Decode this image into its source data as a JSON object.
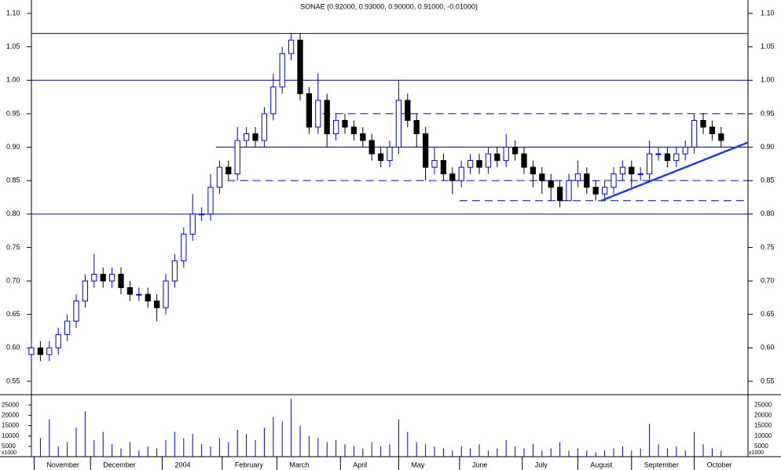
{
  "chart_data": {
    "type": "candlestick",
    "title": "SONAE (0.92000, 0.93000, 0.90000, 0.91000, -0.01000)",
    "x": [
      0,
      1,
      2,
      3,
      4,
      5,
      6,
      7,
      8,
      9,
      10,
      11,
      12,
      13,
      14,
      15,
      16,
      17,
      18,
      19,
      20,
      21,
      22,
      23,
      24,
      25,
      26,
      27,
      28,
      29,
      30,
      31,
      32,
      33,
      34,
      35,
      36,
      37,
      38,
      39,
      40,
      41,
      42,
      43,
      44,
      45,
      46,
      47,
      48,
      49,
      50,
      51,
      52,
      53,
      54,
      55,
      56,
      57,
      58,
      59,
      60,
      61,
      62,
      63,
      64,
      65,
      66,
      67,
      68,
      69,
      70,
      71,
      72,
      73,
      74,
      75,
      76,
      77
    ],
    "open": [
      0.59,
      0.6,
      0.59,
      0.6,
      0.62,
      0.64,
      0.67,
      0.7,
      0.71,
      0.7,
      0.71,
      0.69,
      0.68,
      0.68,
      0.67,
      0.66,
      0.7,
      0.73,
      0.77,
      0.8,
      0.8,
      0.84,
      0.87,
      0.86,
      0.91,
      0.92,
      0.91,
      0.95,
      0.99,
      1.04,
      1.06,
      0.98,
      0.93,
      0.97,
      0.92,
      0.94,
      0.93,
      0.92,
      0.91,
      0.89,
      0.88,
      0.9,
      0.97,
      0.94,
      0.92,
      0.87,
      0.88,
      0.86,
      0.85,
      0.87,
      0.88,
      0.87,
      0.89,
      0.88,
      0.9,
      0.89,
      0.87,
      0.86,
      0.85,
      0.84,
      0.82,
      0.85,
      0.86,
      0.84,
      0.83,
      0.84,
      0.86,
      0.87,
      0.86,
      0.86,
      0.89,
      0.89,
      0.88,
      0.89,
      0.9,
      0.94,
      0.93,
      0.92
    ],
    "high": [
      0.61,
      0.61,
      0.61,
      0.63,
      0.65,
      0.68,
      0.71,
      0.74,
      0.72,
      0.72,
      0.72,
      0.7,
      0.69,
      0.69,
      0.68,
      0.71,
      0.74,
      0.78,
      0.83,
      0.81,
      0.86,
      0.88,
      0.88,
      0.93,
      0.93,
      0.93,
      0.96,
      1.01,
      1.05,
      1.07,
      1.07,
      0.99,
      1.01,
      0.98,
      0.95,
      0.95,
      0.94,
      0.93,
      0.92,
      0.9,
      0.91,
      1.0,
      0.98,
      0.95,
      0.93,
      0.9,
      0.89,
      0.87,
      0.88,
      0.89,
      0.89,
      0.9,
      0.9,
      0.92,
      0.91,
      0.9,
      0.88,
      0.87,
      0.86,
      0.85,
      0.86,
      0.88,
      0.87,
      0.85,
      0.85,
      0.87,
      0.88,
      0.88,
      0.87,
      0.91,
      0.9,
      0.9,
      0.9,
      0.91,
      0.95,
      0.95,
      0.94,
      0.93
    ],
    "low": [
      0.58,
      0.58,
      0.58,
      0.59,
      0.61,
      0.63,
      0.66,
      0.69,
      0.69,
      0.69,
      0.68,
      0.67,
      0.67,
      0.66,
      0.64,
      0.65,
      0.69,
      0.72,
      0.76,
      0.79,
      0.79,
      0.83,
      0.85,
      0.85,
      0.9,
      0.9,
      0.9,
      0.94,
      0.98,
      1.03,
      0.97,
      0.92,
      0.92,
      0.9,
      0.91,
      0.92,
      0.91,
      0.9,
      0.88,
      0.87,
      0.87,
      0.89,
      0.93,
      0.9,
      0.85,
      0.86,
      0.85,
      0.83,
      0.84,
      0.86,
      0.86,
      0.86,
      0.87,
      0.87,
      0.88,
      0.86,
      0.84,
      0.83,
      0.82,
      0.81,
      0.82,
      0.84,
      0.83,
      0.82,
      0.82,
      0.83,
      0.85,
      0.84,
      0.85,
      0.85,
      0.88,
      0.87,
      0.87,
      0.88,
      0.89,
      0.92,
      0.91,
      0.9
    ],
    "close": [
      0.6,
      0.59,
      0.6,
      0.62,
      0.64,
      0.67,
      0.7,
      0.71,
      0.7,
      0.71,
      0.69,
      0.68,
      0.68,
      0.67,
      0.66,
      0.7,
      0.73,
      0.77,
      0.8,
      0.8,
      0.84,
      0.87,
      0.86,
      0.91,
      0.92,
      0.91,
      0.95,
      0.99,
      1.04,
      1.06,
      0.98,
      0.93,
      0.97,
      0.92,
      0.94,
      0.93,
      0.92,
      0.91,
      0.89,
      0.88,
      0.9,
      0.97,
      0.94,
      0.92,
      0.87,
      0.88,
      0.86,
      0.85,
      0.87,
      0.88,
      0.87,
      0.89,
      0.88,
      0.9,
      0.89,
      0.87,
      0.86,
      0.85,
      0.84,
      0.82,
      0.85,
      0.86,
      0.84,
      0.83,
      0.84,
      0.86,
      0.87,
      0.86,
      0.86,
      0.89,
      0.89,
      0.88,
      0.89,
      0.9,
      0.94,
      0.93,
      0.92,
      0.91
    ],
    "volume": [
      6000,
      9000,
      18000,
      5000,
      7000,
      14000,
      22000,
      8000,
      12000,
      6000,
      4000,
      7000,
      3000,
      5000,
      4000,
      8000,
      12000,
      9000,
      11000,
      6000,
      5000,
      9000,
      7000,
      13000,
      11000,
      8000,
      14000,
      19000,
      17000,
      28000,
      15000,
      10000,
      9000,
      7000,
      8000,
      6000,
      5000,
      4000,
      7000,
      5000,
      6000,
      18000,
      12000,
      7000,
      6000,
      5000,
      4000,
      3000,
      5000,
      4000,
      6000,
      3000,
      4000,
      8000,
      5000,
      4000,
      6000,
      3000,
      4000,
      7000,
      3000,
      4000,
      3000,
      2000,
      3000,
      4000,
      5000,
      3000,
      4000,
      16000,
      6000,
      4000,
      5000,
      3000,
      12000,
      6000,
      4000,
      3000
    ],
    "color_up": "#0000cc",
    "color_down": "#000000",
    "xlim": [
      0,
      80
    ],
    "xticks": [
      {
        "value": 0.3,
        "label": "November"
      },
      {
        "value": 6.6,
        "label": "December"
      },
      {
        "value": 14.6,
        "label": "2004"
      },
      {
        "value": 21.3,
        "label": "February"
      },
      {
        "value": 27.4,
        "label": "March"
      },
      {
        "value": 34.5,
        "label": "April"
      },
      {
        "value": 41,
        "label": "May"
      },
      {
        "value": 47.8,
        "label": "June"
      },
      {
        "value": 54.8,
        "label": "July"
      },
      {
        "value": 61,
        "label": "August"
      },
      {
        "value": 67,
        "label": "September"
      },
      {
        "value": 74,
        "label": "October"
      }
    ],
    "ylim": [
      0.53,
      1.12
    ],
    "yticks": [
      {
        "value": 0.55,
        "label": "0.55"
      },
      {
        "value": 0.6,
        "label": "0.60"
      },
      {
        "value": 0.65,
        "label": "0.65"
      },
      {
        "value": 0.7,
        "label": "0.70"
      },
      {
        "value": 0.75,
        "label": "0.75"
      },
      {
        "value": 0.8,
        "label": "0.80"
      },
      {
        "value": 0.85,
        "label": "0.85"
      },
      {
        "value": 0.9,
        "label": "0.90"
      },
      {
        "value": 0.95,
        "label": "0.95"
      },
      {
        "value": 1.0,
        "label": "1.00"
      },
      {
        "value": 1.05,
        "label": "1.05"
      },
      {
        "value": 1.1,
        "label": "1.10"
      }
    ],
    "y2lim": [
      0,
      30000
    ],
    "y2ticks": [
      5000,
      10000,
      15000,
      20000,
      25000
    ],
    "volume_unit": "x1000",
    "lines": [
      {
        "value": 1.07,
        "from": 0,
        "style": "solid"
      },
      {
        "value": 1.0,
        "from": 0,
        "style": "solid"
      },
      {
        "value": 0.8,
        "from": 0,
        "style": "solid"
      },
      {
        "value": 0.9,
        "from": 20.6,
        "style": "solid"
      },
      {
        "value": 0.95,
        "from": 32.5,
        "style": "dashed"
      },
      {
        "value": 0.85,
        "from": 21.9,
        "style": "dashed"
      },
      {
        "value": 0.82,
        "from": 47.8,
        "style": "dashed"
      }
    ],
    "trendline": {
      "x": [
        63.6,
        80
      ],
      "y": [
        0.82,
        0.907
      ],
      "color": "#1f3fd0"
    },
    "line_color": "#00008b"
  }
}
